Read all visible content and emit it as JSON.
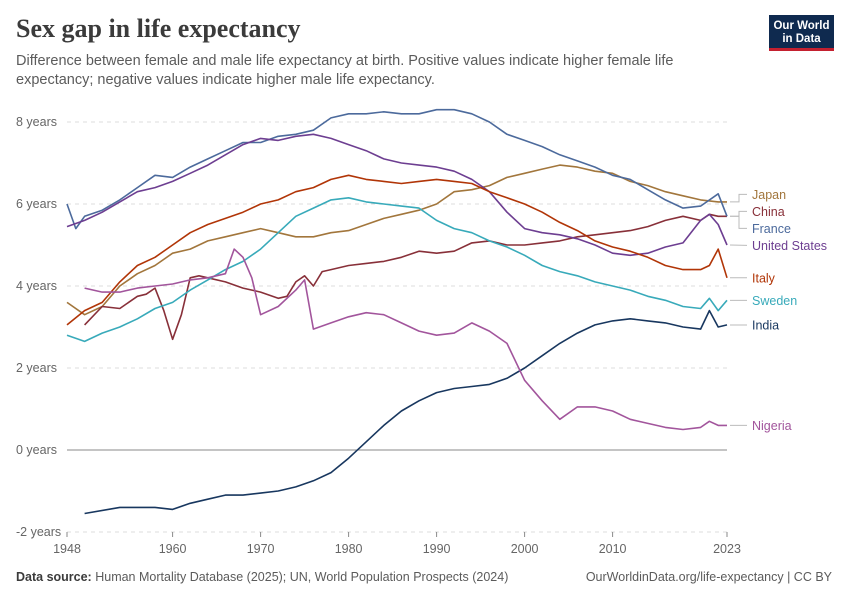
{
  "title": "Sex gap in life expectancy",
  "subtitle": "Difference between female and male life expectancy at birth. Positive values indicate higher female life expectancy; negative values indicate higher male life expectancy.",
  "logo": {
    "line1": "Our World",
    "line2": "in Data"
  },
  "footer": {
    "source_label": "Data source:",
    "source_text": "Human Mortality Database (2025); UN, World Population Prospects (2024)",
    "url_license": "OurWorldinData.org/life-expectancy | CC BY"
  },
  "chart_data": {
    "type": "line",
    "ylim": [
      -2,
      8
    ],
    "yticks": [
      -2,
      0,
      2,
      4,
      6,
      8
    ],
    "ytick_labels": [
      "-2 years",
      "0 years",
      "2 years",
      "4 years",
      "6 years",
      "8 years"
    ],
    "xlim": [
      1948,
      2023
    ],
    "xticks": [
      1948,
      1960,
      1970,
      1980,
      1990,
      2000,
      2010,
      2023
    ],
    "xtick_labels": [
      "1948",
      "1960",
      "1970",
      "1980",
      "1990",
      "2000",
      "2010",
      "2023"
    ],
    "grid": "horizontal-dashed",
    "legend": "right-labels",
    "series": [
      {
        "name": "Japan",
        "color": "#a2763c",
        "x": [
          1948,
          1950,
          1952,
          1954,
          1956,
          1958,
          1960,
          1962,
          1964,
          1966,
          1968,
          1970,
          1972,
          1974,
          1976,
          1978,
          1980,
          1982,
          1984,
          1986,
          1988,
          1990,
          1992,
          1994,
          1996,
          1998,
          2000,
          2002,
          2004,
          2006,
          2008,
          2010,
          2012,
          2014,
          2016,
          2018,
          2020,
          2022,
          2023
        ],
        "y": [
          3.6,
          3.3,
          3.5,
          4.0,
          4.3,
          4.5,
          4.8,
          4.9,
          5.1,
          5.2,
          5.3,
          5.4,
          5.3,
          5.2,
          5.2,
          5.3,
          5.35,
          5.5,
          5.65,
          5.75,
          5.85,
          6.0,
          6.3,
          6.35,
          6.45,
          6.65,
          6.75,
          6.85,
          6.95,
          6.9,
          6.8,
          6.75,
          6.55,
          6.45,
          6.3,
          6.2,
          6.1,
          6.05,
          6.05
        ]
      },
      {
        "name": "China",
        "color": "#883039",
        "x": [
          1950,
          1952,
          1954,
          1956,
          1957,
          1958,
          1959,
          1960,
          1961,
          1962,
          1963,
          1964,
          1966,
          1968,
          1970,
          1972,
          1973,
          1974,
          1975,
          1976,
          1977,
          1978,
          1980,
          1982,
          1984,
          1986,
          1988,
          1990,
          1992,
          1994,
          1996,
          1998,
          2000,
          2002,
          2004,
          2006,
          2008,
          2010,
          2012,
          2014,
          2016,
          2018,
          2020,
          2021,
          2022,
          2023
        ],
        "y": [
          3.05,
          3.5,
          3.45,
          3.75,
          3.8,
          3.95,
          3.4,
          2.7,
          3.3,
          4.2,
          4.25,
          4.2,
          4.1,
          3.95,
          3.85,
          3.7,
          3.75,
          4.1,
          4.25,
          4.0,
          4.35,
          4.4,
          4.5,
          4.55,
          4.6,
          4.7,
          4.85,
          4.8,
          4.85,
          5.05,
          5.1,
          5.0,
          5.0,
          5.05,
          5.1,
          5.2,
          5.25,
          5.3,
          5.35,
          5.45,
          5.6,
          5.7,
          5.6,
          5.75,
          5.7,
          5.7
        ]
      },
      {
        "name": "France",
        "color": "#4c6a9c",
        "x": [
          1948,
          1949,
          1950,
          1952,
          1954,
          1956,
          1958,
          1960,
          1962,
          1964,
          1966,
          1968,
          1970,
          1972,
          1974,
          1976,
          1978,
          1980,
          1982,
          1984,
          1986,
          1988,
          1990,
          1992,
          1994,
          1996,
          1998,
          2000,
          2002,
          2004,
          2006,
          2008,
          2010,
          2012,
          2014,
          2016,
          2018,
          2020,
          2022,
          2023
        ],
        "y": [
          6.0,
          5.4,
          5.7,
          5.85,
          6.1,
          6.4,
          6.7,
          6.65,
          6.9,
          7.1,
          7.3,
          7.5,
          7.5,
          7.65,
          7.7,
          7.8,
          8.1,
          8.2,
          8.2,
          8.25,
          8.2,
          8.2,
          8.3,
          8.3,
          8.2,
          8.0,
          7.7,
          7.55,
          7.4,
          7.2,
          7.05,
          6.9,
          6.7,
          6.6,
          6.35,
          6.1,
          5.9,
          5.95,
          6.25,
          5.7
        ]
      },
      {
        "name": "United States",
        "color": "#6d3e91",
        "x": [
          1948,
          1950,
          1952,
          1954,
          1956,
          1958,
          1960,
          1962,
          1964,
          1966,
          1968,
          1970,
          1972,
          1974,
          1976,
          1978,
          1980,
          1982,
          1984,
          1986,
          1988,
          1990,
          1992,
          1994,
          1996,
          1998,
          2000,
          2002,
          2004,
          2006,
          2008,
          2010,
          2012,
          2014,
          2016,
          2018,
          2020,
          2021,
          2022,
          2023
        ],
        "y": [
          5.45,
          5.6,
          5.8,
          6.05,
          6.3,
          6.4,
          6.55,
          6.75,
          6.95,
          7.2,
          7.45,
          7.6,
          7.55,
          7.65,
          7.7,
          7.6,
          7.45,
          7.3,
          7.1,
          7.0,
          6.95,
          6.9,
          6.8,
          6.6,
          6.3,
          5.8,
          5.4,
          5.3,
          5.25,
          5.15,
          5.0,
          4.8,
          4.75,
          4.8,
          4.95,
          5.05,
          5.6,
          5.75,
          5.5,
          5.0
        ]
      },
      {
        "name": "Italy",
        "color": "#b13507",
        "x": [
          1948,
          1950,
          1952,
          1954,
          1956,
          1958,
          1960,
          1962,
          1964,
          1966,
          1968,
          1970,
          1972,
          1974,
          1976,
          1978,
          1980,
          1982,
          1984,
          1986,
          1988,
          1990,
          1992,
          1994,
          1996,
          1998,
          2000,
          2002,
          2004,
          2006,
          2008,
          2010,
          2012,
          2014,
          2016,
          2018,
          2020,
          2021,
          2022,
          2023
        ],
        "y": [
          3.05,
          3.4,
          3.6,
          4.1,
          4.5,
          4.7,
          5.0,
          5.3,
          5.5,
          5.65,
          5.8,
          6.0,
          6.1,
          6.3,
          6.4,
          6.6,
          6.7,
          6.6,
          6.55,
          6.5,
          6.55,
          6.6,
          6.55,
          6.5,
          6.3,
          6.15,
          6.0,
          5.8,
          5.55,
          5.35,
          5.1,
          4.95,
          4.85,
          4.7,
          4.5,
          4.4,
          4.4,
          4.5,
          4.9,
          4.2
        ]
      },
      {
        "name": "Sweden",
        "color": "#38aaba",
        "x": [
          1948,
          1950,
          1952,
          1954,
          1956,
          1958,
          1960,
          1962,
          1964,
          1966,
          1968,
          1970,
          1972,
          1974,
          1976,
          1978,
          1980,
          1982,
          1984,
          1986,
          1988,
          1990,
          1992,
          1994,
          1996,
          1998,
          2000,
          2002,
          2004,
          2006,
          2008,
          2010,
          2012,
          2014,
          2016,
          2018,
          2020,
          2021,
          2022,
          2023
        ],
        "y": [
          2.8,
          2.65,
          2.85,
          3.0,
          3.2,
          3.45,
          3.6,
          3.9,
          4.15,
          4.4,
          4.6,
          4.9,
          5.3,
          5.7,
          5.9,
          6.1,
          6.15,
          6.05,
          6.0,
          5.95,
          5.9,
          5.6,
          5.4,
          5.3,
          5.1,
          4.95,
          4.75,
          4.5,
          4.35,
          4.25,
          4.1,
          4.0,
          3.9,
          3.75,
          3.65,
          3.5,
          3.45,
          3.7,
          3.4,
          3.65
        ]
      },
      {
        "name": "India",
        "color": "#18375f",
        "x": [
          1950,
          1954,
          1958,
          1960,
          1962,
          1964,
          1966,
          1968,
          1970,
          1972,
          1974,
          1976,
          1978,
          1980,
          1982,
          1984,
          1986,
          1988,
          1990,
          1992,
          1994,
          1996,
          1998,
          2000,
          2002,
          2004,
          2006,
          2008,
          2010,
          2012,
          2014,
          2016,
          2018,
          2020,
          2021,
          2022,
          2023
        ],
        "y": [
          -1.55,
          -1.4,
          -1.4,
          -1.45,
          -1.3,
          -1.2,
          -1.1,
          -1.1,
          -1.05,
          -1.0,
          -0.9,
          -0.75,
          -0.55,
          -0.2,
          0.2,
          0.6,
          0.95,
          1.2,
          1.4,
          1.5,
          1.55,
          1.6,
          1.75,
          2.0,
          2.3,
          2.6,
          2.85,
          3.05,
          3.15,
          3.2,
          3.15,
          3.1,
          3.0,
          2.95,
          3.4,
          3.0,
          3.05
        ]
      },
      {
        "name": "Nigeria",
        "color": "#a2559c",
        "x": [
          1950,
          1952,
          1954,
          1956,
          1958,
          1960,
          1962,
          1964,
          1966,
          1967,
          1968,
          1969,
          1970,
          1972,
          1974,
          1975,
          1976,
          1978,
          1980,
          1982,
          1984,
          1986,
          1988,
          1990,
          1992,
          1994,
          1996,
          1998,
          2000,
          2002,
          2004,
          2006,
          2008,
          2010,
          2012,
          2014,
          2016,
          2018,
          2020,
          2021,
          2022,
          2023
        ],
        "y": [
          3.95,
          3.85,
          3.85,
          3.95,
          4.0,
          4.05,
          4.15,
          4.2,
          4.3,
          4.9,
          4.7,
          4.2,
          3.3,
          3.5,
          3.9,
          4.15,
          2.95,
          3.1,
          3.25,
          3.35,
          3.3,
          3.1,
          2.9,
          2.8,
          2.85,
          3.1,
          2.9,
          2.6,
          1.7,
          1.2,
          0.75,
          1.05,
          1.05,
          0.95,
          0.75,
          0.65,
          0.55,
          0.5,
          0.55,
          0.7,
          0.6,
          0.6
        ]
      }
    ]
  }
}
